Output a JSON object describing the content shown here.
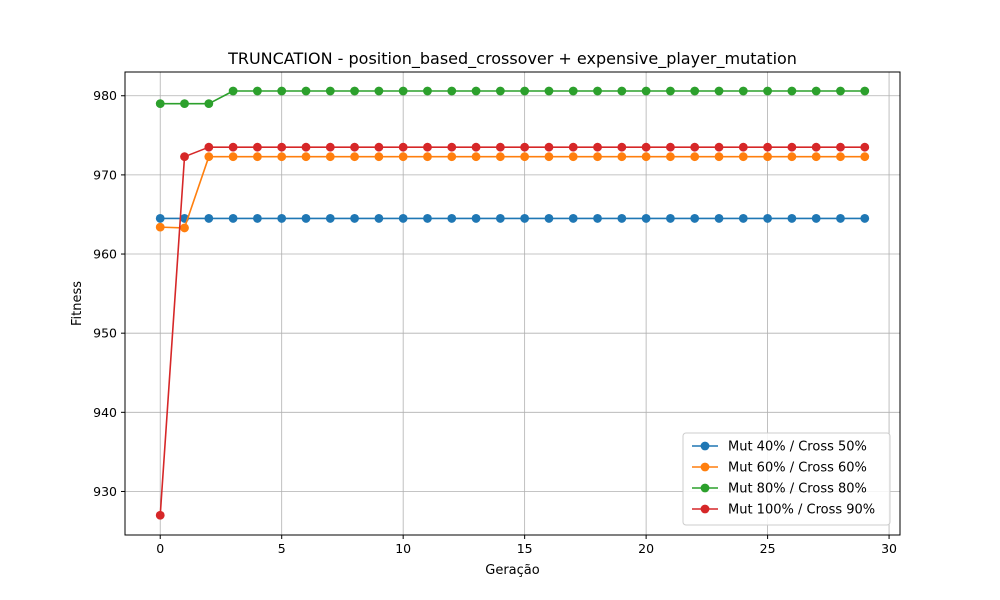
{
  "chart_data": {
    "type": "line",
    "title": "TRUNCATION - position_based_crossover + expensive_player_mutation",
    "xlabel": "Geração",
    "ylabel": "Fitness",
    "xlim": [
      -1.45,
      30.45
    ],
    "ylim": [
      924.5,
      983
    ],
    "xticks": [
      0,
      5,
      10,
      15,
      20,
      25,
      30
    ],
    "yticks": [
      930,
      940,
      950,
      960,
      970,
      980
    ],
    "grid": true,
    "legend_position": "lower-right",
    "x": [
      0,
      1,
      2,
      3,
      4,
      5,
      6,
      7,
      8,
      9,
      10,
      11,
      12,
      13,
      14,
      15,
      16,
      17,
      18,
      19,
      20,
      21,
      22,
      23,
      24,
      25,
      26,
      27,
      28,
      29
    ],
    "series": [
      {
        "name": "Mut 40% / Cross 50%",
        "color": "#1f77b4",
        "values": [
          964.5,
          964.5,
          964.5,
          964.5,
          964.5,
          964.5,
          964.5,
          964.5,
          964.5,
          964.5,
          964.5,
          964.5,
          964.5,
          964.5,
          964.5,
          964.5,
          964.5,
          964.5,
          964.5,
          964.5,
          964.5,
          964.5,
          964.5,
          964.5,
          964.5,
          964.5,
          964.5,
          964.5,
          964.5,
          964.5
        ]
      },
      {
        "name": "Mut 60% / Cross 60%",
        "color": "#ff7f0e",
        "values": [
          963.4,
          963.3,
          972.3,
          972.3,
          972.3,
          972.3,
          972.3,
          972.3,
          972.3,
          972.3,
          972.3,
          972.3,
          972.3,
          972.3,
          972.3,
          972.3,
          972.3,
          972.3,
          972.3,
          972.3,
          972.3,
          972.3,
          972.3,
          972.3,
          972.3,
          972.3,
          972.3,
          972.3,
          972.3,
          972.3
        ]
      },
      {
        "name": "Mut 80% / Cross 80%",
        "color": "#2ca02c",
        "values": [
          979.0,
          979.0,
          979.0,
          980.6,
          980.6,
          980.6,
          980.6,
          980.6,
          980.6,
          980.6,
          980.6,
          980.6,
          980.6,
          980.6,
          980.6,
          980.6,
          980.6,
          980.6,
          980.6,
          980.6,
          980.6,
          980.6,
          980.6,
          980.6,
          980.6,
          980.6,
          980.6,
          980.6,
          980.6,
          980.6
        ]
      },
      {
        "name": "Mut 100% / Cross 90%",
        "color": "#d62728",
        "values": [
          927.0,
          972.3,
          973.5,
          973.5,
          973.5,
          973.5,
          973.5,
          973.5,
          973.5,
          973.5,
          973.5,
          973.5,
          973.5,
          973.5,
          973.5,
          973.5,
          973.5,
          973.5,
          973.5,
          973.5,
          973.5,
          973.5,
          973.5,
          973.5,
          973.5,
          973.5,
          973.5,
          973.5,
          973.5,
          973.5
        ]
      }
    ]
  }
}
